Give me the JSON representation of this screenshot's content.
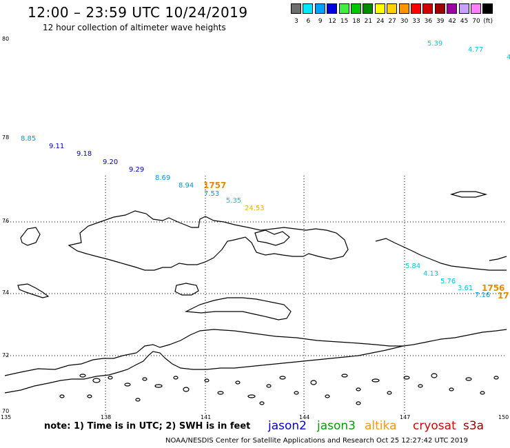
{
  "header": {
    "title": "12:00 – 23:59 UTC 10/24/2019",
    "subtitle": "12 hour collection of altimeter wave heights"
  },
  "legend": {
    "unit": "(ft)",
    "items": [
      {
        "label": "3",
        "color": "#6e6e6e"
      },
      {
        "label": "6",
        "color": "#00e8ff"
      },
      {
        "label": "9",
        "color": "#00a0ff"
      },
      {
        "label": "12",
        "color": "#0000e0"
      },
      {
        "label": "15",
        "color": "#40f040"
      },
      {
        "label": "18",
        "color": "#00c800"
      },
      {
        "label": "21",
        "color": "#008c00"
      },
      {
        "label": "24",
        "color": "#ffff00"
      },
      {
        "label": "27",
        "color": "#ffd200"
      },
      {
        "label": "30",
        "color": "#ff9600"
      },
      {
        "label": "33",
        "color": "#ff0000"
      },
      {
        "label": "36",
        "color": "#d20000"
      },
      {
        "label": "39",
        "color": "#a00000"
      },
      {
        "label": "42",
        "color": "#a000a0"
      },
      {
        "label": "45",
        "color": "#c8a0ff"
      },
      {
        "label": "70",
        "color": "#ff80ff"
      },
      {
        "label": "",
        "color": "#000000"
      }
    ]
  },
  "axes": {
    "lat_labels": [
      "80",
      "78",
      "76",
      "74",
      "72",
      "70"
    ],
    "lon_labels": [
      "135",
      "138",
      "141",
      "144",
      "147",
      "150"
    ]
  },
  "wave_labels": [
    {
      "text": "5.39",
      "color": "#00c8e6"
    },
    {
      "text": "4.77",
      "color": "#00c8e6"
    },
    {
      "text": "4",
      "color": "#00c8e6"
    },
    {
      "text": "8.85",
      "color": "#0096e6"
    },
    {
      "text": "9.11",
      "color": "#0000c8"
    },
    {
      "text": "9.18",
      "color": "#0000c8"
    },
    {
      "text": "9.20",
      "color": "#0000c8"
    },
    {
      "text": "9.29",
      "color": "#0000c8"
    },
    {
      "text": "8.69",
      "color": "#0096e6"
    },
    {
      "text": "8.94",
      "color": "#0096e6"
    },
    {
      "text": "1757",
      "color": "#e68c00",
      "big": true
    },
    {
      "text": "7.53",
      "color": "#0096e6"
    },
    {
      "text": "5.35",
      "color": "#00c8e6"
    },
    {
      "text": "24.53",
      "color": "#e6b400"
    },
    {
      "text": "5.84",
      "color": "#00c8e6"
    },
    {
      "text": "4.13",
      "color": "#00c8e6"
    },
    {
      "text": "5.76",
      "color": "#00c8e6"
    },
    {
      "text": "3.61",
      "color": "#00c8e6"
    },
    {
      "text": "1756",
      "color": "#e68c00",
      "big": true
    },
    {
      "text": "7.16",
      "color": "#0096e6"
    },
    {
      "text": "17",
      "color": "#e68c00",
      "big": true
    }
  ],
  "footer": {
    "note": "note: 1) Time is in UTC; 2) SWH is in feet",
    "satellites": [
      {
        "name": "jason2",
        "color": "#0000dc"
      },
      {
        "name": "jason3",
        "color": "#00a000"
      },
      {
        "name": "altika",
        "color": "#ff9600"
      },
      {
        "name": "cryosat",
        "color": "#dc0000"
      },
      {
        "name": "s3a",
        "color": "#a00000"
      }
    ],
    "credit": "NOAA/NESDIS Center for Satellite Applications and Research    Oct 25 12:27:42 UTC 2019"
  }
}
